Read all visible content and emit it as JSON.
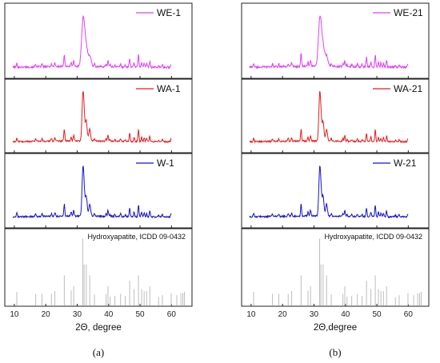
{
  "figure": {
    "label_a": "(a)",
    "label_b": "(b)"
  },
  "chart_data": [
    {
      "type": "line",
      "panel": "(a)",
      "xlabel": "2Θ, degree",
      "xlim": [
        8.5,
        65
      ],
      "x_ticks": [
        10,
        20,
        30,
        40,
        50,
        60
      ],
      "series": [
        {
          "name": "WE-1",
          "color": "#e040fb"
        },
        {
          "name": "WA-1",
          "color": "#e81c1c"
        },
        {
          "name": "W-1",
          "color": "#1414d2"
        }
      ],
      "reference": {
        "name": "Hydroxyapatite, ICDD 09-0432",
        "color": "#bdbdbd",
        "peaks": [
          [
            10.8,
            0.2
          ],
          [
            16.8,
            0.17
          ],
          [
            18.8,
            0.17
          ],
          [
            21.8,
            0.17
          ],
          [
            22.9,
            0.21
          ],
          [
            25.9,
            0.44
          ],
          [
            28.1,
            0.22
          ],
          [
            28.9,
            0.28
          ],
          [
            31.8,
            0.98
          ],
          [
            32.2,
            0.6
          ],
          [
            32.9,
            0.6
          ],
          [
            34.0,
            0.44
          ],
          [
            35.5,
            0.16
          ],
          [
            39.2,
            0.17
          ],
          [
            39.8,
            0.28
          ],
          [
            40.5,
            0.13
          ],
          [
            42.0,
            0.14
          ],
          [
            43.8,
            0.17
          ],
          [
            45.3,
            0.14
          ],
          [
            46.7,
            0.36
          ],
          [
            48.1,
            0.24
          ],
          [
            49.5,
            0.44
          ],
          [
            50.5,
            0.24
          ],
          [
            51.3,
            0.21
          ],
          [
            52.1,
            0.21
          ],
          [
            53.1,
            0.28
          ],
          [
            55.9,
            0.12
          ],
          [
            57.1,
            0.15
          ],
          [
            59.9,
            0.18
          ],
          [
            61.7,
            0.15
          ],
          [
            63.0,
            0.18
          ],
          [
            63.6,
            0.18
          ],
          [
            64.1,
            0.2
          ]
        ]
      }
    },
    {
      "type": "line",
      "panel": "(b)",
      "xlabel": "2Θ,degree",
      "xlim": [
        8.5,
        65
      ],
      "x_ticks": [
        10,
        20,
        30,
        40,
        50,
        60
      ],
      "series": [
        {
          "name": "WE-21",
          "color": "#e040fb"
        },
        {
          "name": "WA-21",
          "color": "#e81c1c"
        },
        {
          "name": "W-21",
          "color": "#1414d2"
        }
      ],
      "reference": {
        "name": "Hydroxyapatite, ICDD 09-0432",
        "color": "#bdbdbd",
        "peaks": [
          [
            10.8,
            0.2
          ],
          [
            16.8,
            0.17
          ],
          [
            18.8,
            0.17
          ],
          [
            21.8,
            0.17
          ],
          [
            22.9,
            0.21
          ],
          [
            25.9,
            0.44
          ],
          [
            28.1,
            0.22
          ],
          [
            28.9,
            0.28
          ],
          [
            31.8,
            0.98
          ],
          [
            32.2,
            0.6
          ],
          [
            32.9,
            0.6
          ],
          [
            34.0,
            0.44
          ],
          [
            35.5,
            0.16
          ],
          [
            39.2,
            0.17
          ],
          [
            39.8,
            0.28
          ],
          [
            40.5,
            0.13
          ],
          [
            42.0,
            0.14
          ],
          [
            43.8,
            0.17
          ],
          [
            45.3,
            0.14
          ],
          [
            46.7,
            0.36
          ],
          [
            48.1,
            0.24
          ],
          [
            49.5,
            0.44
          ],
          [
            50.5,
            0.24
          ],
          [
            51.3,
            0.21
          ],
          [
            52.1,
            0.21
          ],
          [
            53.1,
            0.28
          ],
          [
            55.9,
            0.12
          ],
          [
            57.1,
            0.15
          ],
          [
            59.9,
            0.18
          ],
          [
            61.7,
            0.15
          ],
          [
            63.0,
            0.18
          ],
          [
            63.6,
            0.18
          ],
          [
            64.1,
            0.2
          ]
        ]
      }
    }
  ]
}
